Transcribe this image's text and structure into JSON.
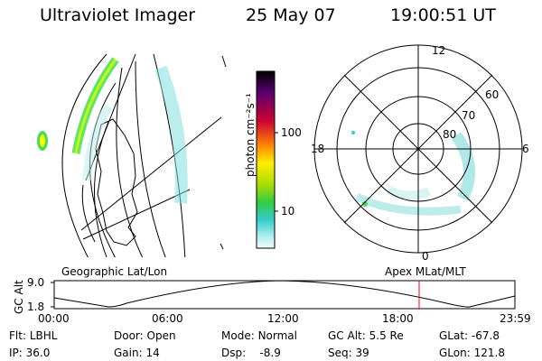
{
  "header": {
    "instrument": "Ultraviolet Imager",
    "date": "25 May 07",
    "time": "19:00:51 UT"
  },
  "geo_panel": {
    "label": "Geographic Lat/Lon"
  },
  "colorbar": {
    "unit_label": "photon cm⁻²s⁻¹",
    "ticks": [
      "100",
      "10"
    ]
  },
  "polar_panel": {
    "label": "Apex MLat/MLT",
    "mlt_labels": [
      "12",
      "18",
      "6",
      "0"
    ],
    "lat_labels": [
      "60",
      "70",
      "80"
    ]
  },
  "timeline": {
    "ylabel": "GC Alt",
    "y_ticks": [
      "9.0",
      "1.8"
    ],
    "x_ticks": [
      "00:00",
      "06:00",
      "12:00",
      "18:00",
      "23:59"
    ],
    "marker_time": "19:00"
  },
  "status": {
    "flt_label": "Flt:",
    "flt_value": "LBHL",
    "ip_label": "IP:",
    "ip_value": "36.0",
    "door_label": "Door:",
    "door_value": "Open",
    "gain_label": "Gain:",
    "gain_value": "14",
    "mode_label": "Mode:",
    "mode_value": "Normal",
    "dsp_label": "Dsp:",
    "dsp_value": "-8.9",
    "gcalt_label": "GC Alt:",
    "gcalt_value": "5.5 Re",
    "seq_label": "Seq:",
    "seq_value": "39",
    "glat_label": "GLat:",
    "glat_value": "-67.8",
    "glon_label": "GLon:",
    "glon_value": "121.8"
  }
}
